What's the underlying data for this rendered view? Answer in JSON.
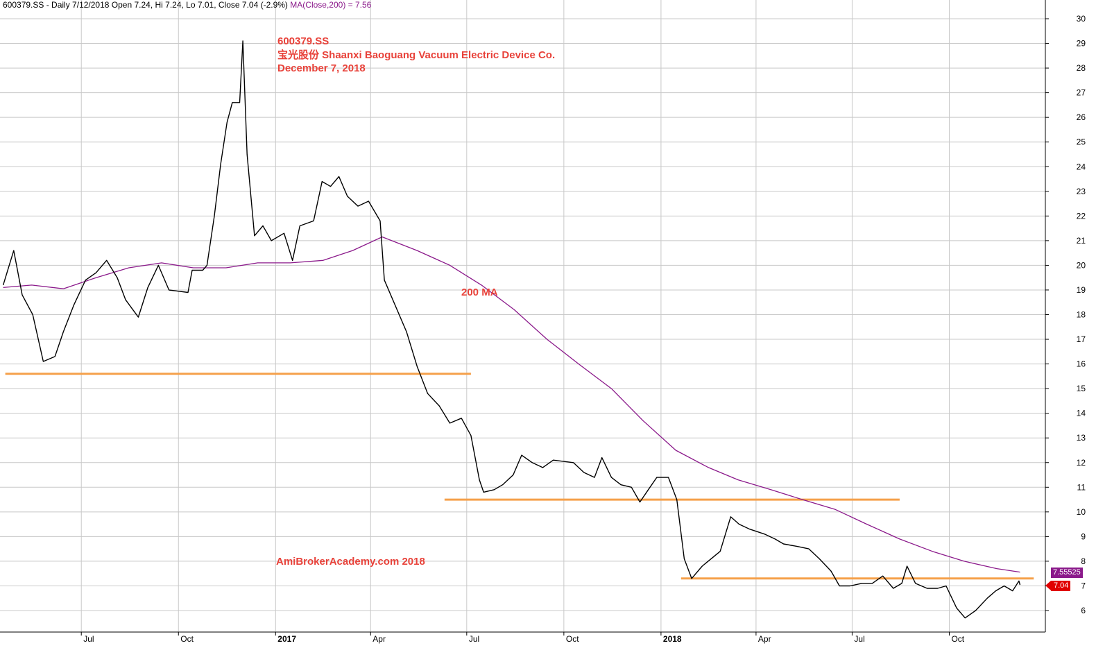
{
  "header": {
    "text": "600379.SS - Daily 7/12/2018 Open 7.24, Hi 7.24, Lo 7.01, Close 7.04 (-2.9%)",
    "ma_text": "MA(Close,200) = 7.56"
  },
  "annotations": {
    "ticker": "600379.SS",
    "company": "宝光股份 Shaanxi Baoguang Vacuum Electric Device Co.",
    "date": "December 7, 2018",
    "ma_label": "200 MA",
    "watermark": "AmiBrokerAcademy.com  2018"
  },
  "labels": {
    "ma_value": "7.55525",
    "close_value": "7.04"
  },
  "colors": {
    "price": "#000000",
    "ma": "#8b1a8b",
    "support": "#f5a04a",
    "text_accent": "#e8423a",
    "grid": "#c8c8c8"
  },
  "chart_data": {
    "type": "line",
    "title": "600379.SS",
    "ylim": [
      5,
      30
    ],
    "y_ticks": [
      6,
      7,
      8,
      9,
      10,
      11,
      12,
      13,
      14,
      15,
      16,
      17,
      18,
      19,
      20,
      21,
      22,
      23,
      24,
      25,
      26,
      27,
      28,
      29,
      30
    ],
    "x_ticks": [
      "Jul",
      "Oct",
      "2017",
      "Apr",
      "Jul",
      "Oct",
      "2018",
      "Apr",
      "Jul",
      "Oct"
    ],
    "x_range": [
      "2016-04-15",
      "2018-12-31"
    ],
    "grid": true,
    "series": [
      {
        "name": "600379.SS",
        "points": [
          [
            "2016-04-18",
            19.2
          ],
          [
            "2016-04-28",
            20.6
          ],
          [
            "2016-05-06",
            18.8
          ],
          [
            "2016-05-16",
            18.0
          ],
          [
            "2016-05-26",
            16.1
          ],
          [
            "2016-06-06",
            16.3
          ],
          [
            "2016-06-14",
            17.3
          ],
          [
            "2016-06-24",
            18.4
          ],
          [
            "2016-07-05",
            19.4
          ],
          [
            "2016-07-15",
            19.7
          ],
          [
            "2016-07-25",
            20.2
          ],
          [
            "2016-08-04",
            19.5
          ],
          [
            "2016-08-12",
            18.6
          ],
          [
            "2016-08-24",
            17.9
          ],
          [
            "2016-09-02",
            19.1
          ],
          [
            "2016-09-12",
            20.0
          ],
          [
            "2016-09-22",
            19.0
          ],
          [
            "2016-10-10",
            18.9
          ],
          [
            "2016-10-14",
            19.8
          ],
          [
            "2016-10-24",
            19.8
          ],
          [
            "2016-10-28",
            20.0
          ],
          [
            "2016-11-04",
            22.0
          ],
          [
            "2016-11-10",
            24.1
          ],
          [
            "2016-11-16",
            25.8
          ],
          [
            "2016-11-21",
            26.6
          ],
          [
            "2016-11-28",
            26.6
          ],
          [
            "2016-12-01",
            29.1
          ],
          [
            "2016-12-05",
            24.5
          ],
          [
            "2016-12-12",
            21.2
          ],
          [
            "2016-12-20",
            21.6
          ],
          [
            "2016-12-28",
            21.0
          ],
          [
            "2017-01-09",
            21.3
          ],
          [
            "2017-01-17",
            20.2
          ],
          [
            "2017-01-24",
            21.6
          ],
          [
            "2017-02-06",
            21.8
          ],
          [
            "2017-02-14",
            23.4
          ],
          [
            "2017-02-22",
            23.2
          ],
          [
            "2017-03-02",
            23.6
          ],
          [
            "2017-03-10",
            22.8
          ],
          [
            "2017-03-20",
            22.4
          ],
          [
            "2017-03-30",
            22.6
          ],
          [
            "2017-04-10",
            21.8
          ],
          [
            "2017-04-14",
            19.4
          ],
          [
            "2017-05-05",
            17.3
          ],
          [
            "2017-05-15",
            15.9
          ],
          [
            "2017-05-25",
            14.8
          ],
          [
            "2017-06-05",
            14.3
          ],
          [
            "2017-06-15",
            13.6
          ],
          [
            "2017-06-26",
            13.8
          ],
          [
            "2017-07-05",
            13.1
          ],
          [
            "2017-07-13",
            11.3
          ],
          [
            "2017-07-17",
            10.8
          ],
          [
            "2017-07-27",
            10.9
          ],
          [
            "2017-08-04",
            11.1
          ],
          [
            "2017-08-14",
            11.5
          ],
          [
            "2017-08-22",
            12.3
          ],
          [
            "2017-09-01",
            12.0
          ],
          [
            "2017-09-11",
            11.8
          ],
          [
            "2017-09-21",
            12.1
          ],
          [
            "2017-10-10",
            12.0
          ],
          [
            "2017-10-20",
            11.6
          ],
          [
            "2017-10-30",
            11.4
          ],
          [
            "2017-11-06",
            12.2
          ],
          [
            "2017-11-15",
            11.4
          ],
          [
            "2017-11-24",
            11.1
          ],
          [
            "2017-12-04",
            11.0
          ],
          [
            "2017-12-12",
            10.4
          ],
          [
            "2017-12-20",
            10.9
          ],
          [
            "2017-12-28",
            11.4
          ],
          [
            "2018-01-08",
            11.4
          ],
          [
            "2018-01-16",
            10.5
          ],
          [
            "2018-01-23",
            8.1
          ],
          [
            "2018-01-30",
            7.3
          ],
          [
            "2018-02-09",
            7.8
          ],
          [
            "2018-02-26",
            8.4
          ],
          [
            "2018-03-08",
            9.8
          ],
          [
            "2018-03-16",
            9.5
          ],
          [
            "2018-03-26",
            9.3
          ],
          [
            "2018-04-09",
            9.1
          ],
          [
            "2018-04-19",
            8.9
          ],
          [
            "2018-04-27",
            8.7
          ],
          [
            "2018-05-10",
            8.6
          ],
          [
            "2018-05-21",
            8.5
          ],
          [
            "2018-05-31",
            8.1
          ],
          [
            "2018-06-11",
            7.6
          ],
          [
            "2018-06-19",
            7.0
          ],
          [
            "2018-06-29",
            7.0
          ],
          [
            "2018-07-10",
            7.1
          ],
          [
            "2018-07-20",
            7.1
          ],
          [
            "2018-07-30",
            7.4
          ],
          [
            "2018-08-09",
            6.9
          ],
          [
            "2018-08-17",
            7.1
          ],
          [
            "2018-08-22",
            7.8
          ],
          [
            "2018-08-30",
            7.1
          ],
          [
            "2018-09-10",
            6.9
          ],
          [
            "2018-09-20",
            6.9
          ],
          [
            "2018-09-28",
            7.0
          ],
          [
            "2018-10-08",
            6.1
          ],
          [
            "2018-10-16",
            5.7
          ],
          [
            "2018-10-26",
            6.0
          ],
          [
            "2018-11-06",
            6.5
          ],
          [
            "2018-11-14",
            6.8
          ],
          [
            "2018-11-22",
            7.0
          ],
          [
            "2018-11-30",
            6.8
          ],
          [
            "2018-12-06",
            7.2
          ],
          [
            "2018-12-07",
            7.04
          ]
        ]
      },
      {
        "name": "MA(Close,200)",
        "points": [
          [
            "2016-04-18",
            19.1
          ],
          [
            "2016-05-15",
            19.2
          ],
          [
            "2016-06-14",
            19.05
          ],
          [
            "2016-07-15",
            19.5
          ],
          [
            "2016-08-15",
            19.9
          ],
          [
            "2016-09-15",
            20.1
          ],
          [
            "2016-10-15",
            19.9
          ],
          [
            "2016-11-15",
            19.9
          ],
          [
            "2016-12-15",
            20.1
          ],
          [
            "2017-01-15",
            20.1
          ],
          [
            "2017-02-15",
            20.2
          ],
          [
            "2017-03-15",
            20.6
          ],
          [
            "2017-04-12",
            21.15
          ],
          [
            "2017-05-15",
            20.6
          ],
          [
            "2017-06-15",
            20.0
          ],
          [
            "2017-07-15",
            19.2
          ],
          [
            "2017-08-15",
            18.2
          ],
          [
            "2017-09-15",
            17.0
          ],
          [
            "2017-10-15",
            16.0
          ],
          [
            "2017-11-15",
            15.0
          ],
          [
            "2017-12-15",
            13.7
          ],
          [
            "2018-01-15",
            12.5
          ],
          [
            "2018-02-15",
            11.8
          ],
          [
            "2018-03-15",
            11.3
          ],
          [
            "2018-04-15",
            10.9
          ],
          [
            "2018-05-15",
            10.5
          ],
          [
            "2018-06-15",
            10.1
          ],
          [
            "2018-07-15",
            9.5
          ],
          [
            "2018-08-15",
            8.9
          ],
          [
            "2018-09-15",
            8.4
          ],
          [
            "2018-10-15",
            8.0
          ],
          [
            "2018-11-15",
            7.7
          ],
          [
            "2018-12-07",
            7.56
          ]
        ]
      }
    ],
    "support_levels": [
      {
        "from": "2016-04-20",
        "to": "2017-07-05",
        "value": 15.6
      },
      {
        "from": "2017-06-10",
        "to": "2018-08-15",
        "value": 10.5
      },
      {
        "from": "2018-01-20",
        "to": "2018-12-20",
        "value": 7.3
      }
    ]
  }
}
